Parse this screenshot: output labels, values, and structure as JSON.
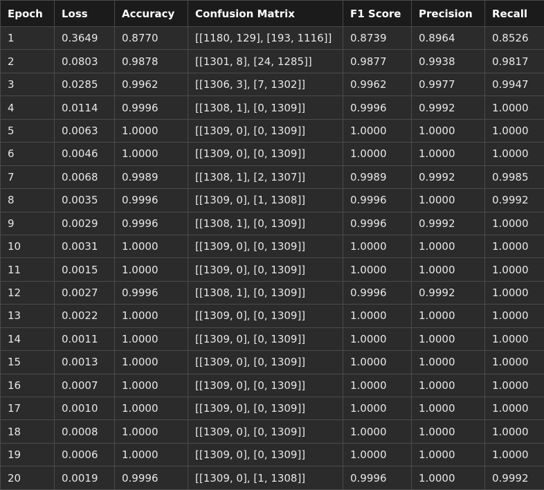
{
  "table": {
    "columns": [
      "Epoch",
      "Loss",
      "Accuracy",
      "Confusion Matrix",
      "F1 Score",
      "Precision",
      "Recall"
    ],
    "rows": [
      [
        "1",
        "0.3649",
        "0.8770",
        "[[1180, 129], [193, 1116]]",
        "0.8739",
        "0.8964",
        "0.8526"
      ],
      [
        "2",
        "0.0803",
        "0.9878",
        "[[1301, 8], [24, 1285]]",
        "0.9877",
        "0.9938",
        "0.9817"
      ],
      [
        "3",
        "0.0285",
        "0.9962",
        "[[1306, 3], [7, 1302]]",
        "0.9962",
        "0.9977",
        "0.9947"
      ],
      [
        "4",
        "0.0114",
        "0.9996",
        "[[1308, 1], [0, 1309]]",
        "0.9996",
        "0.9992",
        "1.0000"
      ],
      [
        "5",
        "0.0063",
        "1.0000",
        "[[1309, 0], [0, 1309]]",
        "1.0000",
        "1.0000",
        "1.0000"
      ],
      [
        "6",
        "0.0046",
        "1.0000",
        "[[1309, 0], [0, 1309]]",
        "1.0000",
        "1.0000",
        "1.0000"
      ],
      [
        "7",
        "0.0068",
        "0.9989",
        "[[1308, 1], [2, 1307]]",
        "0.9989",
        "0.9992",
        "0.9985"
      ],
      [
        "8",
        "0.0035",
        "0.9996",
        "[[1309, 0], [1, 1308]]",
        "0.9996",
        "1.0000",
        "0.9992"
      ],
      [
        "9",
        "0.0029",
        "0.9996",
        "[[1308, 1], [0, 1309]]",
        "0.9996",
        "0.9992",
        "1.0000"
      ],
      [
        "10",
        "0.0031",
        "1.0000",
        "[[1309, 0], [0, 1309]]",
        "1.0000",
        "1.0000",
        "1.0000"
      ],
      [
        "11",
        "0.0015",
        "1.0000",
        "[[1309, 0], [0, 1309]]",
        "1.0000",
        "1.0000",
        "1.0000"
      ],
      [
        "12",
        "0.0027",
        "0.9996",
        "[[1308, 1], [0, 1309]]",
        "0.9996",
        "0.9992",
        "1.0000"
      ],
      [
        "13",
        "0.0022",
        "1.0000",
        "[[1309, 0], [0, 1309]]",
        "1.0000",
        "1.0000",
        "1.0000"
      ],
      [
        "14",
        "0.0011",
        "1.0000",
        "[[1309, 0], [0, 1309]]",
        "1.0000",
        "1.0000",
        "1.0000"
      ],
      [
        "15",
        "0.0013",
        "1.0000",
        "[[1309, 0], [0, 1309]]",
        "1.0000",
        "1.0000",
        "1.0000"
      ],
      [
        "16",
        "0.0007",
        "1.0000",
        "[[1309, 0], [0, 1309]]",
        "1.0000",
        "1.0000",
        "1.0000"
      ],
      [
        "17",
        "0.0010",
        "1.0000",
        "[[1309, 0], [0, 1309]]",
        "1.0000",
        "1.0000",
        "1.0000"
      ],
      [
        "18",
        "0.0008",
        "1.0000",
        "[[1309, 0], [0, 1309]]",
        "1.0000",
        "1.0000",
        "1.0000"
      ],
      [
        "19",
        "0.0006",
        "1.0000",
        "[[1309, 0], [0, 1309]]",
        "1.0000",
        "1.0000",
        "1.0000"
      ],
      [
        "20",
        "0.0019",
        "0.9996",
        "[[1309, 0], [1, 1308]]",
        "0.9996",
        "1.0000",
        "0.9992"
      ]
    ]
  },
  "colors": {
    "page_background": "#262626",
    "header_background": "#1b1b1b",
    "cell_background": "#2b2b2b",
    "border": "#4b4b4b",
    "text": "#e8e8e8"
  }
}
